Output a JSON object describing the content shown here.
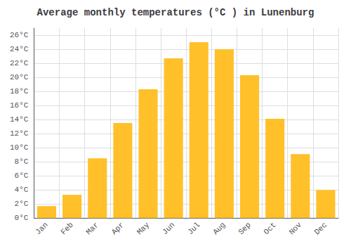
{
  "chart_data": {
    "type": "bar",
    "title": "Average monthly temperatures (°C ) in Lunenburg",
    "categories": [
      "Jan",
      "Feb",
      "Mar",
      "Apr",
      "May",
      "Jun",
      "Jul",
      "Aug",
      "Sep",
      "Oct",
      "Nov",
      "Dec"
    ],
    "values": [
      1.7,
      3.3,
      8.5,
      13.5,
      18.3,
      22.7,
      25.0,
      24.0,
      20.3,
      14.1,
      9.1,
      4.0
    ],
    "color": "#FFC02A",
    "ylim": [
      0,
      27
    ],
    "yticks": [
      {
        "value": 0,
        "label": "0°C"
      },
      {
        "value": 2,
        "label": "2°C"
      },
      {
        "value": 4,
        "label": "4°C"
      },
      {
        "value": 6,
        "label": "6°C"
      },
      {
        "value": 8,
        "label": "8°C"
      },
      {
        "value": 10,
        "label": "10°C"
      },
      {
        "value": 12,
        "label": "12°C"
      },
      {
        "value": 14,
        "label": "14°C"
      },
      {
        "value": 16,
        "label": "16°C"
      },
      {
        "value": 18,
        "label": "18°C"
      },
      {
        "value": 20,
        "label": "20°C"
      },
      {
        "value": 22,
        "label": "22°C"
      },
      {
        "value": 24,
        "label": "24°C"
      },
      {
        "value": 26,
        "label": "26°C"
      }
    ],
    "grid": true
  }
}
